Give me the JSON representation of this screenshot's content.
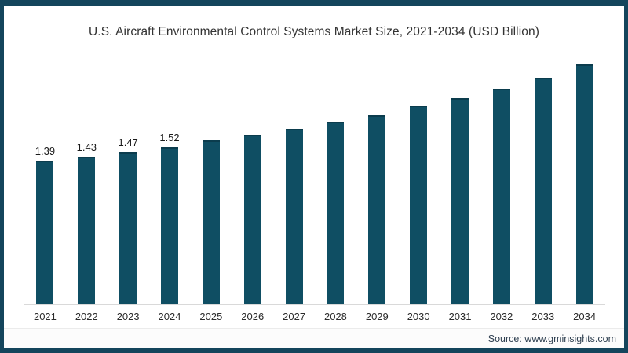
{
  "title": "U.S. Aircraft Environmental Control Systems Market Size, 2021-2034 (USD Billion)",
  "source_text": "Source: www.gminsights.com",
  "colors": {
    "bar": "#0f4e63",
    "bar_cap": "#0b3c4d",
    "frame_border": "#14455c",
    "axis_line": "#d9d9d9",
    "title_text": "#333333"
  },
  "chart_data": {
    "type": "bar",
    "title": "U.S. Aircraft Environmental Control Systems Market Size, 2021-2034 (USD Billion)",
    "xlabel": "",
    "ylabel": "USD Billion",
    "categories": [
      "2021",
      "2022",
      "2023",
      "2024",
      "2025",
      "2026",
      "2027",
      "2028",
      "2029",
      "2030",
      "2031",
      "2032",
      "2033",
      "2034"
    ],
    "values": [
      1.39,
      1.43,
      1.47,
      1.52,
      1.59,
      1.64,
      1.7,
      1.77,
      1.83,
      1.92,
      2.0,
      2.09,
      2.2,
      2.33
    ],
    "data_labels": [
      "1.39",
      "1.43",
      "1.47",
      "1.52",
      "",
      "",
      "",
      "",
      "",
      "",
      "",
      "",
      "",
      ""
    ],
    "ylim": [
      0,
      2.5
    ],
    "grid": false,
    "legend": false,
    "bar_color": "#0f4e63"
  }
}
